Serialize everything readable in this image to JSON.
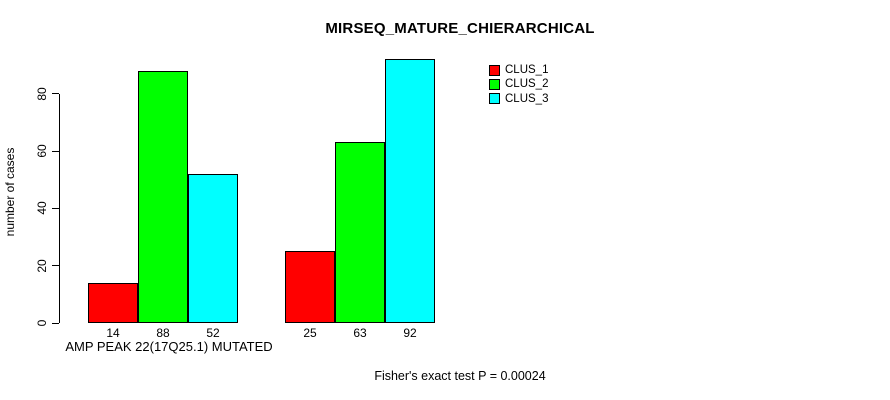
{
  "title": "MIRSEQ_MATURE_CHIERARCHICAL",
  "footer": "Fisher's exact test P = 0.00024",
  "chart_data": {
    "type": "bar",
    "title": "MIRSEQ_MATURE_CHIERARCHICAL",
    "xlabel": "AMP PEAK 22(17Q25.1) MUTATED",
    "ylabel": "number of cases",
    "yticks": [
      0,
      20,
      40,
      60,
      80
    ],
    "ylim": [
      0,
      95
    ],
    "grid": false,
    "legend_position": "top-right",
    "series": [
      {
        "name": "CLUS_1",
        "color": "#ff0000",
        "values": [
          14,
          25
        ]
      },
      {
        "name": "CLUS_2",
        "color": "#00ff00",
        "values": [
          88,
          63
        ]
      },
      {
        "name": "CLUS_3",
        "color": "#00ffff",
        "values": [
          52,
          92
        ]
      }
    ],
    "groups": [
      {
        "bar_values": [
          14,
          88,
          52
        ]
      },
      {
        "bar_values": [
          25,
          63,
          92
        ]
      }
    ],
    "bar_value_labels": [
      [
        "14",
        "88",
        "52"
      ],
      [
        "25",
        "63",
        "92"
      ]
    ],
    "annotation": "Fisher's exact test P = 0.00024"
  },
  "legend": {
    "items": [
      {
        "label": "CLUS_1",
        "color": "#ff0000"
      },
      {
        "label": "CLUS_2",
        "color": "#00ff00"
      },
      {
        "label": "CLUS_3",
        "color": "#00ffff"
      }
    ]
  }
}
